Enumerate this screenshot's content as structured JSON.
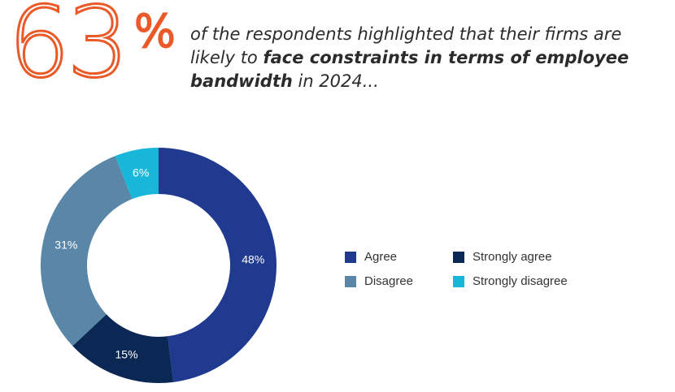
{
  "headline": {
    "number": "63",
    "percent": "%",
    "text_before": "of the respondents highlighted that their firms are likely to ",
    "text_bold": "face constraints in terms of employee bandwidth",
    "text_after": " in 2024..."
  },
  "colors": {
    "accent": "#ea5a28",
    "agree": "#1f3a8f",
    "strongly_agree": "#0b2753",
    "disagree": "#5a87a8",
    "strongly_disagree": "#18b7d9"
  },
  "chart_data": {
    "type": "pie",
    "style": "donut",
    "categories": [
      "Agree",
      "Strongly agree",
      "Disagree",
      "Strongly disagree"
    ],
    "values": [
      48,
      15,
      31,
      6
    ],
    "labels": [
      "48%",
      "15%",
      "31%",
      "6%"
    ],
    "legend": "right",
    "title": ""
  },
  "legend": {
    "items": [
      {
        "label": "Agree",
        "color": "#1f3a8f"
      },
      {
        "label": "Strongly agree",
        "color": "#0b2753"
      },
      {
        "label": "Disagree",
        "color": "#5a87a8"
      },
      {
        "label": "Strongly disagree",
        "color": "#18b7d9"
      }
    ]
  }
}
